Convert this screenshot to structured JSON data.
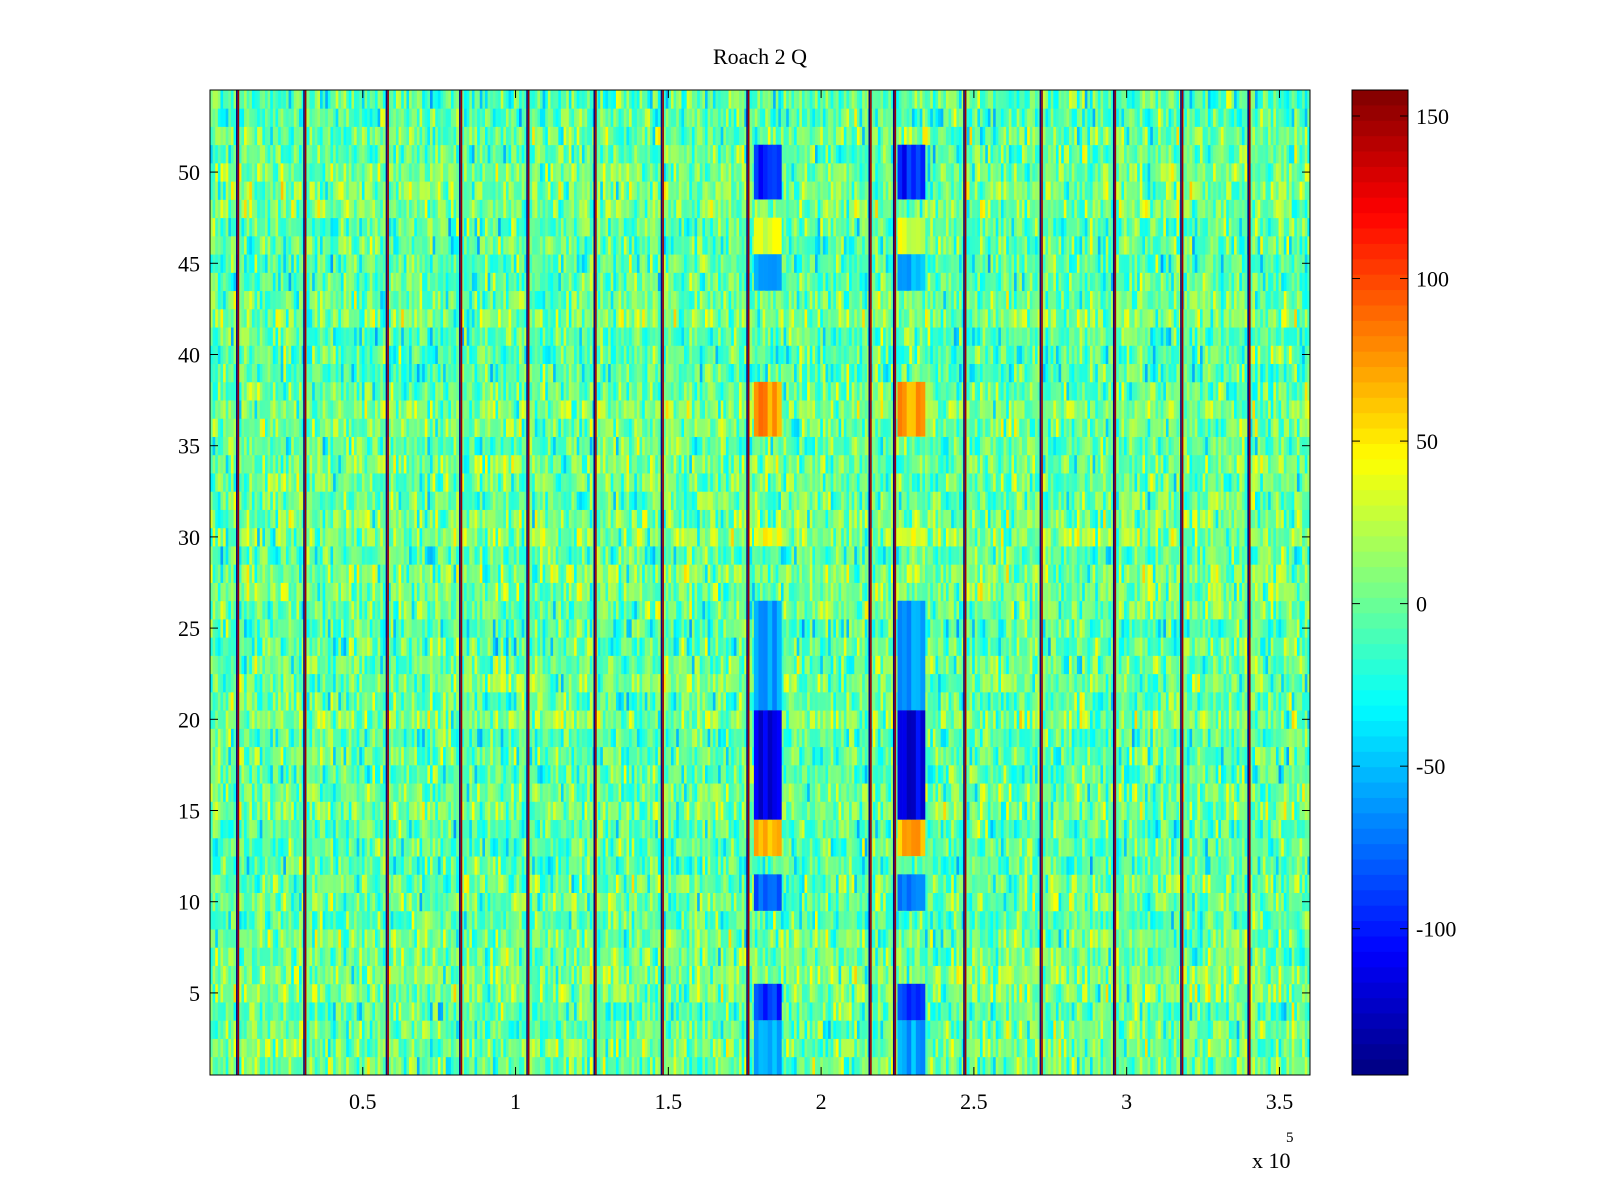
{
  "chart_data": {
    "type": "heatmap",
    "title": "Roach 2 Q",
    "xlabel": "",
    "ylabel": "",
    "x_multiplier_label": "x 10",
    "x_multiplier_exponent": "5",
    "xlim": [
      0,
      360000
    ],
    "ylim": [
      0.5,
      54.5
    ],
    "x_ticks": [
      50000,
      100000,
      150000,
      200000,
      250000,
      300000,
      350000
    ],
    "x_tick_labels": [
      "0.5",
      "1",
      "1.5",
      "2",
      "2.5",
      "3",
      "3.5"
    ],
    "y_ticks": [
      5,
      10,
      15,
      20,
      25,
      30,
      35,
      40,
      45,
      50
    ],
    "y_tick_labels": [
      "5",
      "10",
      "15",
      "20",
      "25",
      "30",
      "35",
      "40",
      "45",
      "50"
    ],
    "rows": 54,
    "colormap": "jet",
    "clim": [
      -145,
      158
    ],
    "colorbar": {
      "ticks": [
        150,
        100,
        50,
        0,
        -50,
        -100
      ],
      "tick_labels": [
        "150",
        "100",
        "50",
        "0",
        "-50",
        "-100"
      ]
    },
    "background_value": 0,
    "vertical_boundary_lines_x": [
      9000,
      31000,
      58000,
      82000,
      104000,
      126000,
      148000,
      176000,
      216000,
      224000,
      247000,
      272000,
      296000,
      318000,
      340000
    ],
    "event_columns_x": [
      [
        178000,
        187000
      ],
      [
        225000,
        234000
      ]
    ],
    "event_rows": [
      {
        "rows": [
          1,
          3
        ],
        "value": -60
      },
      {
        "rows": [
          4,
          5
        ],
        "value": -90
      },
      {
        "rows": [
          10,
          11
        ],
        "value": -75
      },
      {
        "rows": [
          13,
          14
        ],
        "value": 70
      },
      {
        "rows": [
          15,
          20
        ],
        "value": -115
      },
      {
        "rows": [
          21,
          26
        ],
        "value": -60
      },
      {
        "rows": [
          30,
          30
        ],
        "value": 40
      },
      {
        "rows": [
          36,
          38
        ],
        "value": 75
      },
      {
        "rows": [
          44,
          45
        ],
        "value": -55
      },
      {
        "rows": [
          46,
          47
        ],
        "value": 35
      },
      {
        "rows": [
          49,
          51
        ],
        "value": -100
      }
    ]
  }
}
